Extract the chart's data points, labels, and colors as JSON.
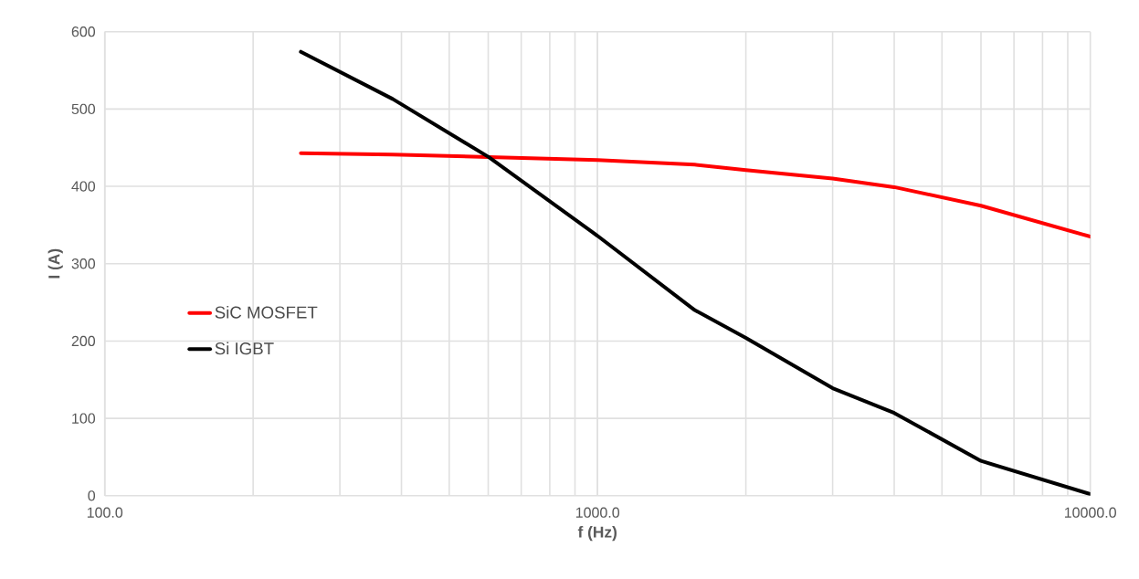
{
  "chart_data": {
    "type": "line",
    "xlabel": "f (Hz)",
    "ylabel": "I (A)",
    "log": "x",
    "xlim": [
      100,
      10000
    ],
    "xticks": [
      {
        "value": 100,
        "label": "100.0"
      },
      {
        "value": 1000,
        "label": "1000.0"
      },
      {
        "value": 10000,
        "label": "10000.0"
      }
    ],
    "ylim": [
      0,
      600
    ],
    "yticks": [
      0,
      100,
      200,
      300,
      400,
      500,
      600
    ],
    "grid": true,
    "legend": "left",
    "marker": "none",
    "line_style": "solid",
    "series": [
      {
        "name": "SiC MOSFET",
        "color": "#ff0000",
        "x": [
          250,
          384,
          601,
          1000,
          1575,
          2000,
          3000,
          4000,
          6000,
          10000
        ],
        "values": [
          443,
          441,
          438,
          434,
          428,
          421,
          410,
          399,
          375,
          335
        ]
      },
      {
        "name": "Si IGBT",
        "color": "#000000",
        "x": [
          250,
          384,
          601,
          1000,
          1575,
          2000,
          3000,
          4000,
          6000,
          10000
        ],
        "values": [
          574,
          513,
          438,
          336,
          240,
          204,
          139,
          107,
          45,
          2
        ]
      }
    ]
  }
}
